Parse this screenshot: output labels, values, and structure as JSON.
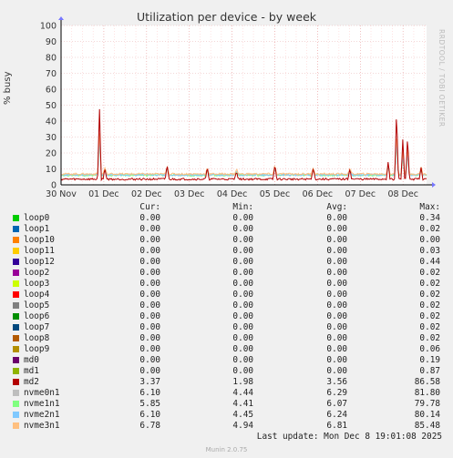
{
  "chart_data": {
    "type": "line",
    "title": "Utilization per device - by week",
    "ylabel": "% busy",
    "ylim": [
      0,
      100
    ],
    "yticks": [
      "0",
      "10",
      "20",
      "30",
      "40",
      "50",
      "60",
      "70",
      "80",
      "90",
      "100"
    ],
    "xticks": [
      "30 Nov",
      "01 Dec",
      "02 Dec",
      "03 Dec",
      "04 Dec",
      "05 Dec",
      "06 Dec",
      "07 Dec",
      "08 Dec"
    ],
    "grid": true,
    "vendor": "RRDTOOL / TOBI OETIKER",
    "columns": {
      "cur": "Cur:",
      "min": "Min:",
      "avg": "Avg:",
      "max": "Max:"
    },
    "series": [
      {
        "name": "loop0",
        "color": "#00cc00",
        "cur": "0.00",
        "min": "0.00",
        "avg": "0.00",
        "max": "0.34"
      },
      {
        "name": "loop1",
        "color": "#0066b3",
        "cur": "0.00",
        "min": "0.00",
        "avg": "0.00",
        "max": "0.02"
      },
      {
        "name": "loop10",
        "color": "#ff8000",
        "cur": "0.00",
        "min": "0.00",
        "avg": "0.00",
        "max": "0.00"
      },
      {
        "name": "loop11",
        "color": "#ffcc00",
        "cur": "0.00",
        "min": "0.00",
        "avg": "0.00",
        "max": "0.03"
      },
      {
        "name": "loop12",
        "color": "#330099",
        "cur": "0.00",
        "min": "0.00",
        "avg": "0.00",
        "max": "0.44"
      },
      {
        "name": "loop2",
        "color": "#990099",
        "cur": "0.00",
        "min": "0.00",
        "avg": "0.00",
        "max": "0.02"
      },
      {
        "name": "loop3",
        "color": "#ccff00",
        "cur": "0.00",
        "min": "0.00",
        "avg": "0.00",
        "max": "0.02"
      },
      {
        "name": "loop4",
        "color": "#ff0000",
        "cur": "0.00",
        "min": "0.00",
        "avg": "0.00",
        "max": "0.02"
      },
      {
        "name": "loop5",
        "color": "#808080",
        "cur": "0.00",
        "min": "0.00",
        "avg": "0.00",
        "max": "0.02"
      },
      {
        "name": "loop6",
        "color": "#008f00",
        "cur": "0.00",
        "min": "0.00",
        "avg": "0.00",
        "max": "0.02"
      },
      {
        "name": "loop7",
        "color": "#00487d",
        "cur": "0.00",
        "min": "0.00",
        "avg": "0.00",
        "max": "0.02"
      },
      {
        "name": "loop8",
        "color": "#b35a00",
        "cur": "0.00",
        "min": "0.00",
        "avg": "0.00",
        "max": "0.02"
      },
      {
        "name": "loop9",
        "color": "#b38f00",
        "cur": "0.00",
        "min": "0.00",
        "avg": "0.00",
        "max": "0.06"
      },
      {
        "name": "md0",
        "color": "#6b006b",
        "cur": "0.00",
        "min": "0.00",
        "avg": "0.00",
        "max": "0.19"
      },
      {
        "name": "md1",
        "color": "#8fb300",
        "cur": "0.00",
        "min": "0.00",
        "avg": "0.00",
        "max": "0.87"
      },
      {
        "name": "md2",
        "color": "#b30000",
        "cur": "3.37",
        "min": "1.98",
        "avg": "3.56",
        "max": "86.58"
      },
      {
        "name": "nvme0n1",
        "color": "#bebebe",
        "cur": "6.10",
        "min": "4.44",
        "avg": "6.29",
        "max": "81.80"
      },
      {
        "name": "nvme1n1",
        "color": "#80ff80",
        "cur": "5.85",
        "min": "4.41",
        "avg": "6.07",
        "max": "79.78"
      },
      {
        "name": "nvme2n1",
        "color": "#80c9ff",
        "cur": "6.10",
        "min": "4.45",
        "avg": "6.24",
        "max": "80.14"
      },
      {
        "name": "nvme3n1",
        "color": "#ffc080",
        "cur": "6.78",
        "min": "4.94",
        "avg": "6.81",
        "max": "85.48"
      }
    ]
  },
  "footer": {
    "last_update": "Last update: Mon Dec  8 19:01:08 2025",
    "munin": "Munin 2.0.75"
  }
}
